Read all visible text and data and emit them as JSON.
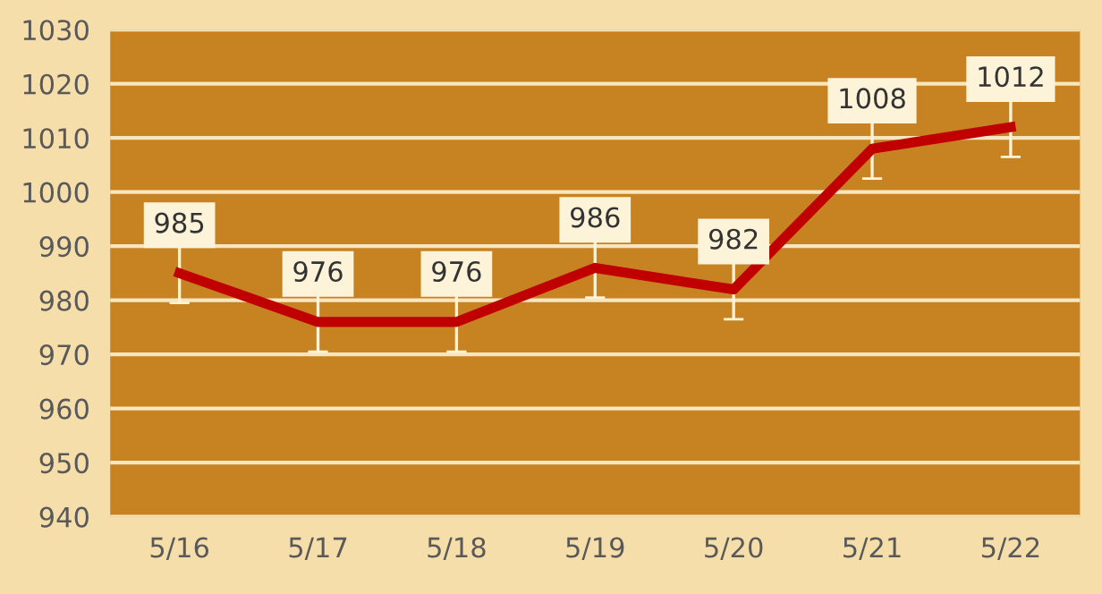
{
  "chart_data": {
    "type": "line",
    "categories": [
      "5/16",
      "5/17",
      "5/18",
      "5/19",
      "5/20",
      "5/21",
      "5/22"
    ],
    "series": [
      {
        "color": "#c00000",
        "values": [
          985,
          976,
          976,
          986,
          982,
          1008,
          1012
        ],
        "errors": [
          5.5,
          5.5,
          5.5,
          5.5,
          5.5,
          5.5,
          5.5
        ]
      }
    ],
    "ylim": [
      940,
      1030
    ],
    "yticks": [
      940,
      950,
      960,
      970,
      980,
      990,
      1000,
      1010,
      1020,
      1030
    ],
    "grid": "y",
    "data_labels": true,
    "marker": "none",
    "line_style": "solid"
  }
}
